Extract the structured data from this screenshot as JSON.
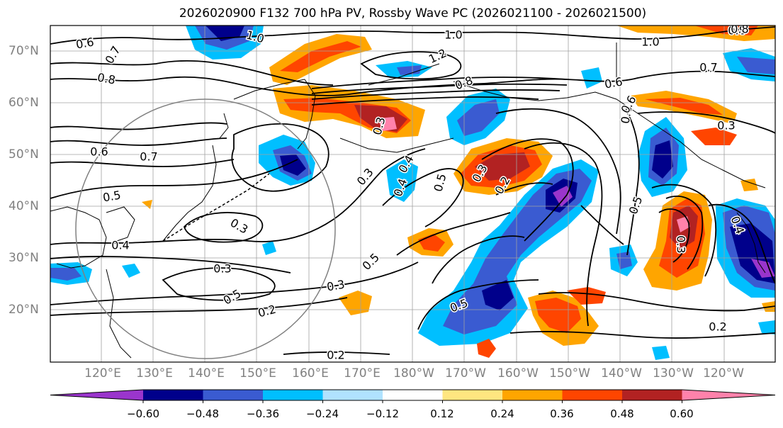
{
  "title": "2026020900 F132 700 hPa PV, Rossby Wave PC (2026021100 - 2026021500)",
  "latitude_labels": [
    "70°N",
    "60°N",
    "50°N",
    "40°N",
    "30°N",
    "20°N"
  ],
  "longitude_labels": [
    "120°E",
    "130°E",
    "140°E",
    "150°E",
    "160°E",
    "170°E",
    "180°W",
    "170°W",
    "160°W",
    "150°W",
    "140°W",
    "130°W",
    "120°W"
  ],
  "contour_labels": [
    "1.0",
    "0.6",
    "0.7",
    "0.8",
    "1.2",
    "0.8",
    "1.0",
    "0.8",
    "0.7",
    "0.6",
    "0.6",
    "0.3",
    "0.6",
    "0.7",
    "0.5",
    "0.5",
    "0.4",
    "0.3",
    "0.4",
    "0.5",
    "0.2",
    "0.3",
    "0.5",
    "0.3",
    "0.5",
    "0.2",
    "0.2",
    "0.3",
    "0.4",
    "0.5",
    "0.3",
    "0.6",
    "0.2",
    "0.4",
    "0.3",
    "0.3",
    "1.0",
    "0.8"
  ],
  "colorbar": {
    "ticks": [
      "−0.60",
      "−0.48",
      "−0.36",
      "−0.24",
      "−0.12",
      "0.12",
      "0.24",
      "0.36",
      "0.48",
      "0.60"
    ],
    "colors": [
      "#9a35cc",
      "#00008b",
      "#3a5bd1",
      "#00bfff",
      "#b0e2ff",
      "#ffffff",
      "#ffe680",
      "#ffa500",
      "#ff4500",
      "#b22222",
      "#ff82ab"
    ]
  },
  "fill_colors": {
    "neg_light": "#00bfff",
    "neg_mid": "#3a5bd1",
    "neg_dark": "#00008b",
    "neg_extreme": "#9a35cc",
    "pos_light": "#ffa500",
    "pos_mid": "#ff4500",
    "pos_dark": "#b22222",
    "pos_extreme": "#ff82ab",
    "pos_faint": "#ffe680",
    "neg_faint": "#b0e2ff"
  }
}
